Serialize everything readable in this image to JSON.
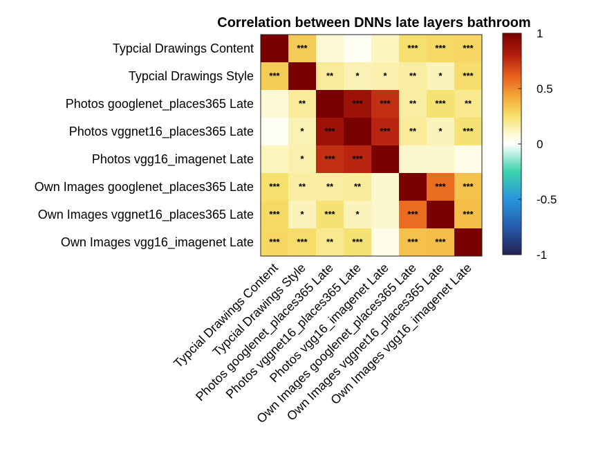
{
  "chart_data": {
    "type": "heatmap",
    "title": "Correlation between DNNs late layers bathroom",
    "labels": [
      "Typcial Drawings Content",
      "Typcial Drawings Style",
      "Photos googlenet_places365 Late",
      "Photos vggnet16_places365 Late",
      "Photos vgg16_imagenet Late",
      "Own Images googlenet_places365 Late",
      "Own Images vggnet16_places365 Late",
      "Own Images vgg16_imagenet Late"
    ],
    "values": [
      [
        1.0,
        0.32,
        0.08,
        0.02,
        0.12,
        0.25,
        0.27,
        0.28
      ],
      [
        0.32,
        1.0,
        0.18,
        0.14,
        0.15,
        0.17,
        0.13,
        0.26
      ],
      [
        0.08,
        0.18,
        1.0,
        0.88,
        0.75,
        0.17,
        0.24,
        0.2
      ],
      [
        0.02,
        0.14,
        0.88,
        1.0,
        0.78,
        0.18,
        0.13,
        0.24
      ],
      [
        0.12,
        0.15,
        0.75,
        0.78,
        1.0,
        0.1,
        0.1,
        0.05
      ],
      [
        0.25,
        0.17,
        0.17,
        0.18,
        0.1,
        1.0,
        0.58,
        0.35
      ],
      [
        0.27,
        0.13,
        0.24,
        0.13,
        0.1,
        0.58,
        1.0,
        0.36
      ],
      [
        0.28,
        0.26,
        0.2,
        0.24,
        0.05,
        0.35,
        0.36,
        1.0
      ]
    ],
    "significance": [
      [
        "",
        "***",
        "",
        "",
        "",
        "***",
        "***",
        "***"
      ],
      [
        "***",
        "",
        "**",
        "*",
        "*",
        "**",
        "*",
        "***"
      ],
      [
        "",
        "**",
        "",
        "***",
        "***",
        "**",
        "***",
        "**"
      ],
      [
        "",
        "*",
        "***",
        "",
        "***",
        "**",
        "*",
        "***"
      ],
      [
        "",
        "*",
        "***",
        "***",
        "",
        "",
        "",
        ""
      ],
      [
        "***",
        "**",
        "**",
        "**",
        "",
        "",
        "***",
        "***"
      ],
      [
        "***",
        "*",
        "***",
        "*",
        "",
        "***",
        "",
        "***"
      ],
      [
        "***",
        "***",
        "**",
        "***",
        "",
        "***",
        "***",
        ""
      ]
    ],
    "colorbar": {
      "range": [
        -1,
        1
      ],
      "ticks": [
        "1",
        "0.5",
        "0",
        "-0.5",
        "-1"
      ],
      "colormap": "diverging dark-blue-cyan-white-yellow-orange-dark-red"
    }
  }
}
